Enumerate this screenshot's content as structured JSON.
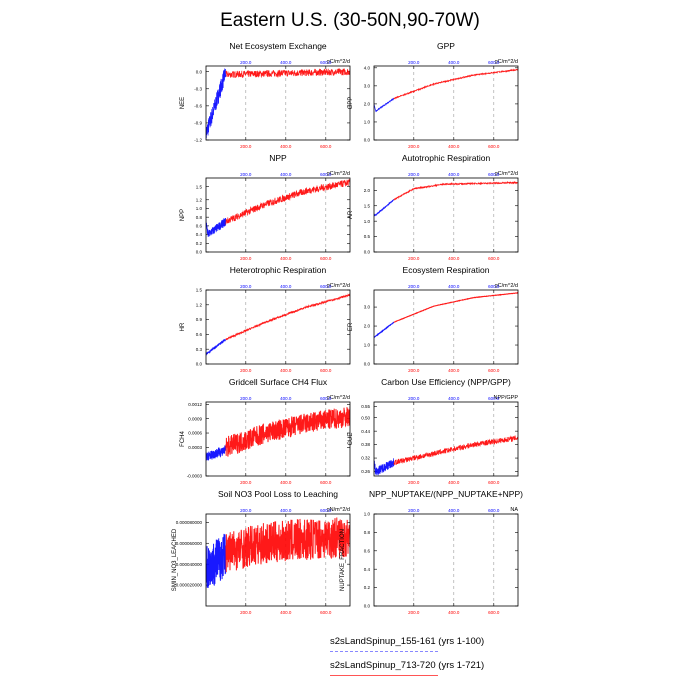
{
  "page": {
    "title": "Eastern U.S. (30-50N,90-70W)"
  },
  "legend": [
    {
      "label": "s2sLandSpinup_155-161 (yrs 1-100)",
      "color": "#3333ff",
      "style": "dashed"
    },
    {
      "label": "s2sLandSpinup_713-720 (yrs 1-721)",
      "color": "#ff3333",
      "style": "solid"
    }
  ],
  "colors": {
    "blue": "#0000ff",
    "red": "#ff0000",
    "top_axis": "#0000ff",
    "bottom_axis": "#ff0000",
    "grid": "#999999"
  },
  "chart_data": [
    {
      "type": "line",
      "title": "Net Ecosystem Exchange",
      "ylabel": "NEE",
      "units": "gC/m^2/d",
      "yticks": [
        "0.0",
        "-0.3",
        "-0.6",
        "-0.9",
        "-1.2"
      ],
      "ylim": [
        -1.2,
        0.1
      ],
      "xticks": [
        "200.0",
        "400.0",
        "600.0"
      ],
      "xlim": [
        1,
        721
      ],
      "series": [
        {
          "color": "blue",
          "x": [
            1,
            100
          ],
          "y": [
            -1.1,
            0.0
          ],
          "band": 0.15
        },
        {
          "color": "red",
          "x": [
            100,
            721
          ],
          "y": [
            -0.05,
            0.0
          ],
          "band": 0.06
        }
      ]
    },
    {
      "type": "line",
      "title": "GPP",
      "ylabel": "GPP",
      "units": "gC/m^2/d",
      "yticks": [
        "0.0",
        "1.0",
        "2.0",
        "3.0",
        "4.0"
      ],
      "ylim": [
        0,
        4.1
      ],
      "xticks": [
        "200.0",
        "400.0",
        "600.0"
      ],
      "xlim": [
        1,
        721
      ],
      "series": [
        {
          "color": "blue",
          "x": [
            1,
            10,
            100
          ],
          "y": [
            2.0,
            1.6,
            2.3
          ],
          "band": 0.03
        },
        {
          "color": "red",
          "x": [
            100,
            300,
            500,
            721
          ],
          "y": [
            2.3,
            3.1,
            3.6,
            3.9
          ],
          "band": 0.03
        }
      ]
    },
    {
      "type": "line",
      "title": "NPP",
      "ylabel": "NPP",
      "units": "gC/m^2/d",
      "yticks": [
        "0.0",
        "0.2",
        "0.4",
        "0.6",
        "0.8",
        "1.0",
        "1.2",
        "1.5"
      ],
      "ylim": [
        0,
        1.7
      ],
      "xticks": [
        "200.0",
        "400.0",
        "600.0"
      ],
      "xlim": [
        1,
        721
      ],
      "series": [
        {
          "color": "blue",
          "x": [
            1,
            10,
            100
          ],
          "y": [
            0.7,
            0.4,
            0.7
          ],
          "band": 0.1
        },
        {
          "color": "red",
          "x": [
            100,
            300,
            500,
            721
          ],
          "y": [
            0.7,
            1.1,
            1.4,
            1.6
          ],
          "band": 0.08
        }
      ]
    },
    {
      "type": "line",
      "title": "Autotrophic Respiration",
      "ylabel": "AR",
      "units": "gC/m^2/d",
      "yticks": [
        "0.0",
        "0.5",
        "1.0",
        "1.5",
        "2.0"
      ],
      "ylim": [
        0,
        2.4
      ],
      "xticks": [
        "200.0",
        "400.0",
        "600.0"
      ],
      "xlim": [
        1,
        721
      ],
      "series": [
        {
          "color": "blue",
          "x": [
            1,
            10,
            100
          ],
          "y": [
            1.2,
            1.2,
            1.7
          ],
          "band": 0.02
        },
        {
          "color": "red",
          "x": [
            100,
            200,
            350,
            721
          ],
          "y": [
            1.7,
            2.05,
            2.2,
            2.25
          ],
          "band": 0.02
        }
      ]
    },
    {
      "type": "line",
      "title": "Heterotrophic Respiration",
      "ylabel": "HR",
      "units": "gC/m^2/d",
      "yticks": [
        "0.0",
        "0.3",
        "0.6",
        "0.9",
        "1.2",
        "1.5"
      ],
      "ylim": [
        0,
        1.5
      ],
      "xticks": [
        "200.0",
        "400.0",
        "600.0"
      ],
      "xlim": [
        1,
        721
      ],
      "series": [
        {
          "color": "blue",
          "x": [
            1,
            100
          ],
          "y": [
            0.2,
            0.5
          ],
          "band": 0.01
        },
        {
          "color": "red",
          "x": [
            100,
            300,
            500,
            721
          ],
          "y": [
            0.5,
            0.85,
            1.15,
            1.4
          ],
          "band": 0.02
        }
      ]
    },
    {
      "type": "line",
      "title": "Ecosystem Respiration",
      "ylabel": "ER",
      "units": "gC/m^2/d",
      "yticks": [
        "0.0",
        "1.0",
        "2.0",
        "3.0"
      ],
      "ylim": [
        0,
        3.9
      ],
      "xticks": [
        "200.0",
        "400.0",
        "600.0"
      ],
      "xlim": [
        1,
        721
      ],
      "series": [
        {
          "color": "blue",
          "x": [
            1,
            100
          ],
          "y": [
            1.4,
            2.2
          ],
          "band": 0.01
        },
        {
          "color": "red",
          "x": [
            100,
            300,
            500,
            721
          ],
          "y": [
            2.2,
            3.05,
            3.5,
            3.75
          ],
          "band": 0.01
        }
      ]
    },
    {
      "type": "line",
      "title": "Gridcell Surface CH4 Flux",
      "ylabel": "FCH4",
      "units": "gC/m^2/d",
      "yticks": [
        "-0.0003",
        "0.0003",
        "0.0006",
        "0.0009",
        "0.0012"
      ],
      "ylim": [
        -0.0003,
        0.00125
      ],
      "xticks": [
        "200.0",
        "400.0",
        "600.0"
      ],
      "xlim": [
        1,
        721
      ],
      "series": [
        {
          "color": "blue",
          "x": [
            1,
            100
          ],
          "y": [
            0.0001,
            0.00025
          ],
          "band": 0.0001
        },
        {
          "color": "red",
          "x": [
            100,
            300,
            500,
            721
          ],
          "y": [
            0.0003,
            0.0006,
            0.0008,
            0.00095
          ],
          "band": 0.00022
        }
      ]
    },
    {
      "type": "line",
      "title": "Carbon Use Efficiency (NPP/GPP)",
      "ylabel": "CUE",
      "units": "NPP/GPP",
      "yticks": [
        "0.26",
        "0.32",
        "0.38",
        "0.44",
        "0.50",
        "0.55"
      ],
      "ylim": [
        0.24,
        0.57
      ],
      "xticks": [
        "200.0",
        "400.0",
        "600.0"
      ],
      "xlim": [
        1,
        721
      ],
      "series": [
        {
          "color": "blue",
          "x": [
            1,
            10,
            100
          ],
          "y": [
            0.3,
            0.26,
            0.3
          ],
          "band": 0.02
        },
        {
          "color": "red",
          "x": [
            100,
            300,
            500,
            721
          ],
          "y": [
            0.3,
            0.34,
            0.38,
            0.41
          ],
          "band": 0.012
        }
      ]
    },
    {
      "type": "line",
      "title": "Soil NO3 Pool Loss to Leaching",
      "ylabel": "SMIN_NO3_LEACHED",
      "units": "gN/m^2/d",
      "yticks": [
        "0.000020000",
        "0.000040000",
        "0.000060000",
        "0.000080000"
      ],
      "ylim": [
        0,
        8.8e-05
      ],
      "xticks": [
        "200.0",
        "400.0",
        "600.0"
      ],
      "xlim": [
        1,
        721
      ],
      "series": [
        {
          "color": "blue",
          "x": [
            1,
            100
          ],
          "y": [
            3.5e-05,
            5e-05
          ],
          "band": 2.2e-05
        },
        {
          "color": "red",
          "x": [
            100,
            300,
            500,
            721
          ],
          "y": [
            5.2e-05,
            6e-05,
            6.4e-05,
            6.6e-05
          ],
          "band": 2e-05
        }
      ]
    },
    {
      "type": "line",
      "title": "NPP_NUPTAKE/(NPP_NUPTAKE+NPP)",
      "ylabel": "NUPTAKE_FRACTION",
      "units": "NA",
      "yticks": [
        "0.0",
        "0.2",
        "0.4",
        "0.6",
        "0.8",
        "1.0"
      ],
      "ylim": [
        0,
        1.0
      ],
      "xticks": [
        "200.0",
        "400.0",
        "600.0"
      ],
      "xlim": [
        1,
        721
      ],
      "series": []
    }
  ]
}
